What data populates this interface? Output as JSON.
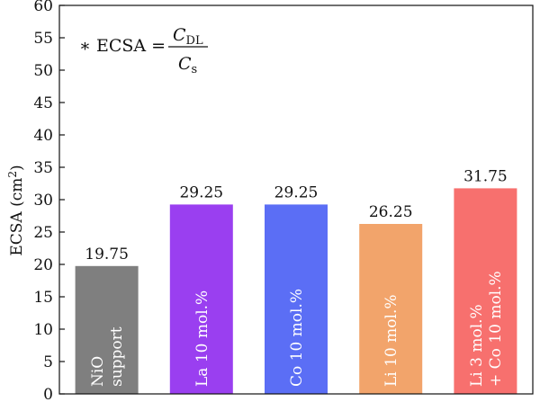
{
  "chart_data": {
    "type": "bar",
    "categories": [
      "NiO support",
      "La 10 mol.%",
      "Co 10 mol.%",
      "Li 10 mol.%",
      "Li 3 mol.% + Co 10 mol.%"
    ],
    "category_lines": [
      [
        "NiO",
        "support"
      ],
      [
        "La 10 mol.%"
      ],
      [
        "Co 10 mol.%"
      ],
      [
        "Li 10 mol.%"
      ],
      [
        "Li 3 mol.%",
        "+ Co 10 mol.%"
      ]
    ],
    "values": [
      19.75,
      29.25,
      29.25,
      26.25,
      31.75
    ],
    "value_labels": [
      "19.75",
      "29.25",
      "29.25",
      "26.25",
      "31.75"
    ],
    "bar_colors": [
      "#7f7f7f",
      "#9a3ff0",
      "#5b6ef5",
      "#f2a46b",
      "#f7706e"
    ],
    "ylabel": {
      "main": "ECSA (cm",
      "sup": "2",
      "close": ")"
    },
    "ylim": [
      0,
      60
    ],
    "yticks": [
      0,
      5,
      10,
      15,
      20,
      25,
      30,
      35,
      40,
      45,
      50,
      55,
      60
    ],
    "annotation": {
      "prefix": "∗ ECSA =",
      "numerator": {
        "var": "C",
        "sub": "DL"
      },
      "denominator": {
        "var": "C",
        "sub": "s"
      }
    },
    "grid": false
  }
}
